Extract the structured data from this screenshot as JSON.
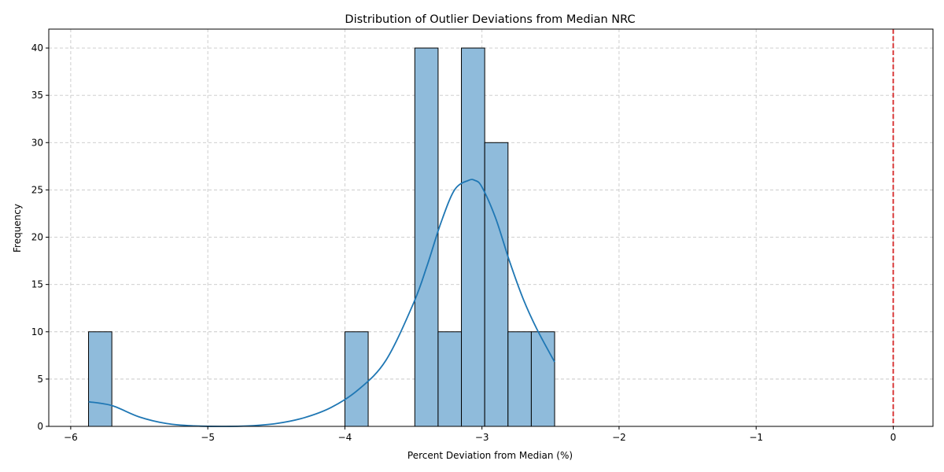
{
  "chart_data": {
    "type": "bar",
    "title": "Distribution of Outlier Deviations from Median NRC",
    "xlabel": "Percent Deviation from Median (%)",
    "ylabel": "Frequency",
    "xlim": [
      -6.16,
      0.29
    ],
    "ylim": [
      0,
      42
    ],
    "x_ticks": [
      -6,
      -5,
      -4,
      -3,
      -2,
      -1,
      0
    ],
    "x_tick_labels": [
      "−6",
      "−5",
      "−4",
      "−3",
      "−2",
      "−1",
      "0"
    ],
    "y_ticks": [
      0,
      5,
      10,
      15,
      20,
      25,
      30,
      35,
      40
    ],
    "y_tick_labels": [
      "0",
      "5",
      "10",
      "15",
      "20",
      "25",
      "30",
      "35",
      "40"
    ],
    "grid": true,
    "bar_color": "#8fbbdb",
    "kde_color": "#1f77b4",
    "reference_line": {
      "x": 0,
      "color": "#d62728",
      "style": "dashed"
    },
    "bins": [
      {
        "start": -5.87,
        "end": -5.7,
        "count": 10
      },
      {
        "start": -4.0,
        "end": -3.83,
        "count": 10
      },
      {
        "start": -3.49,
        "end": -3.32,
        "count": 40
      },
      {
        "start": -3.32,
        "end": -3.15,
        "count": 10
      },
      {
        "start": -3.15,
        "end": -2.98,
        "count": 40
      },
      {
        "start": -2.98,
        "end": -2.81,
        "count": 30
      },
      {
        "start": -2.81,
        "end": -2.64,
        "count": 10
      },
      {
        "start": -2.64,
        "end": -2.47,
        "count": 10
      }
    ],
    "kde_curve": {
      "x": [
        -5.87,
        -5.7,
        -5.5,
        -5.3,
        -5.1,
        -4.9,
        -4.7,
        -4.5,
        -4.3,
        -4.1,
        -3.9,
        -3.7,
        -3.5,
        -3.4,
        -3.3,
        -3.2,
        -3.1,
        -3.05,
        -3.0,
        -2.9,
        -2.8,
        -2.7,
        -2.6,
        -2.47
      ],
      "y": [
        2.6,
        2.2,
        1.0,
        0.3,
        0.05,
        0.0,
        0.05,
        0.3,
        0.9,
        2.0,
        3.9,
        7.0,
        13.0,
        17.0,
        21.5,
        25.0,
        26.0,
        26.0,
        25.3,
        22.0,
        17.5,
        13.5,
        10.3,
        6.8
      ]
    }
  }
}
